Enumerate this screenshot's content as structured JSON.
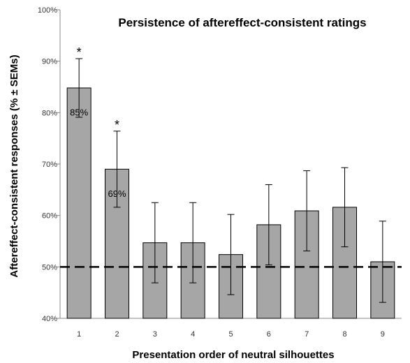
{
  "chart_data": {
    "type": "bar",
    "title": "Persistence of aftereffect-consistent ratings",
    "xlabel": "Presentation order of neutral silhouettes",
    "ylabel": "Aftereffect-consistent responses (% ± SEMs)",
    "categories": [
      "1",
      "2",
      "3",
      "4",
      "5",
      "6",
      "7",
      "8",
      "9"
    ],
    "values": [
      84.8,
      69.0,
      54.7,
      54.7,
      52.4,
      58.2,
      60.9,
      61.6,
      51.0
    ],
    "errors": [
      5.7,
      7.4,
      7.8,
      7.8,
      7.8,
      7.8,
      7.8,
      7.7,
      7.9
    ],
    "value_labels": [
      "85%",
      "69%",
      "",
      "",
      "",
      "",
      "",
      "",
      ""
    ],
    "significance": [
      "*",
      "*",
      "",
      "",
      "",
      "",
      "",
      "",
      ""
    ],
    "yticks": [
      "40%",
      "50%",
      "60%",
      "70%",
      "80%",
      "90%",
      "100%"
    ],
    "ylim": [
      40,
      100
    ],
    "reference_line": 50,
    "grid": false,
    "colors": {
      "bar": "#a6a6a6",
      "bar_stroke": "#000000",
      "reference": "#000000"
    }
  }
}
